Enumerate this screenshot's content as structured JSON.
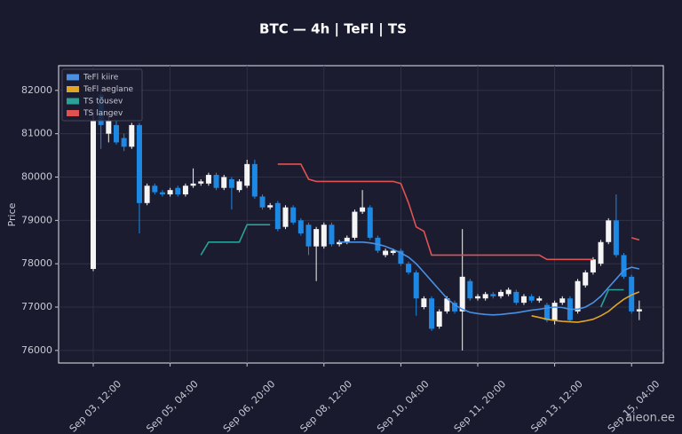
{
  "chart_data": {
    "type": "candlestick",
    "title": "BTC — 4h  |  TeFl  |  TS",
    "y_label": "Price",
    "watermark": "aieon.ee",
    "up_color": "#f5f5f5",
    "down_color": "#1e88e5",
    "grid": true,
    "legend": "upper left",
    "ylim": [
      75710,
      82570
    ],
    "yticks": [
      76000,
      77000,
      78000,
      79000,
      80000,
      81000,
      82000
    ],
    "categories": [
      "Sep 03, 12:00",
      null,
      null,
      null,
      null,
      null,
      null,
      null,
      null,
      null,
      "Sep 05, 04:00",
      null,
      null,
      null,
      null,
      null,
      null,
      null,
      null,
      null,
      "Sep 06, 20:00",
      null,
      null,
      null,
      null,
      null,
      null,
      null,
      null,
      null,
      "Sep 08, 12:00",
      null,
      null,
      null,
      null,
      null,
      null,
      null,
      null,
      null,
      "Sep 10, 04:00",
      null,
      null,
      null,
      null,
      null,
      null,
      null,
      null,
      null,
      "Sep 11, 20:00",
      null,
      null,
      null,
      null,
      null,
      null,
      null,
      null,
      null,
      "Sep 13, 12:00",
      null,
      null,
      null,
      null,
      null,
      null,
      null,
      null,
      null,
      "Sep 15, 04:00",
      null
    ],
    "open": [
      77880,
      81900,
      81000,
      81200,
      80900,
      80700,
      81200,
      79400,
      79800,
      79650,
      79600,
      79750,
      79600,
      79800,
      79850,
      79850,
      80050,
      79750,
      79950,
      79700,
      79800,
      80300,
      79550,
      79300,
      79400,
      78850,
      79300,
      79000,
      78900,
      78400,
      78400,
      78900,
      78450,
      78500,
      78600,
      79200,
      79300,
      78600,
      78200,
      78250,
      78300,
      78000,
      77800,
      77000,
      77200,
      76550,
      76900,
      77100,
      76900,
      77600,
      77200,
      77200,
      77300,
      77250,
      77300,
      77350,
      77100,
      77250,
      77150,
      77050,
      76700,
      77100,
      77200,
      76900,
      77500,
      77800,
      78000,
      78500,
      79000,
      78200,
      77700,
      76900
    ],
    "high": [
      81500,
      82000,
      81500,
      81300,
      81000,
      81250,
      81250,
      79850,
      79850,
      79700,
      79750,
      79800,
      79850,
      80200,
      79950,
      80100,
      80100,
      80050,
      80000,
      79950,
      80400,
      80400,
      79600,
      79400,
      79450,
      79350,
      79350,
      79050,
      78950,
      78850,
      78950,
      78950,
      78550,
      78650,
      79250,
      79700,
      79350,
      78650,
      78350,
      78350,
      78350,
      78050,
      77850,
      77250,
      77250,
      76950,
      77250,
      77150,
      78800,
      77650,
      77300,
      77350,
      77350,
      77400,
      77450,
      77400,
      77300,
      77300,
      77250,
      77100,
      77150,
      77250,
      77250,
      77650,
      77850,
      78150,
      78550,
      79050,
      79600,
      78250,
      77750,
      77150
    ],
    "low": [
      77830,
      80650,
      80800,
      80750,
      80600,
      80650,
      78700,
      79350,
      79600,
      79550,
      79550,
      79550,
      79550,
      79750,
      79800,
      79800,
      79700,
      79700,
      79250,
      79650,
      79750,
      79500,
      79250,
      79250,
      78750,
      78800,
      78900,
      78650,
      78200,
      77600,
      78350,
      78400,
      78400,
      78450,
      78550,
      79150,
      78550,
      78250,
      78150,
      78200,
      77950,
      77750,
      76800,
      76950,
      76450,
      76500,
      76850,
      76850,
      76000,
      77150,
      77150,
      77150,
      77200,
      77200,
      77250,
      77050,
      77050,
      77100,
      77100,
      76650,
      76600,
      77050,
      76650,
      76850,
      77450,
      77750,
      77950,
      78450,
      78150,
      77650,
      76850,
      76700
    ],
    "close": [
      81300,
      81200,
      81300,
      80800,
      80700,
      81200,
      79400,
      79800,
      79650,
      79600,
      79700,
      79600,
      79800,
      79850,
      79900,
      80050,
      79750,
      80000,
      79750,
      79900,
      80300,
      79550,
      79300,
      79350,
      78800,
      79300,
      78950,
      78700,
      78400,
      78800,
      78900,
      78450,
      78500,
      78600,
      79200,
      79300,
      78600,
      78300,
      78300,
      78300,
      78000,
      77800,
      77200,
      77200,
      76500,
      76900,
      77200,
      76900,
      77700,
      77200,
      77250,
      77300,
      77250,
      77350,
      77400,
      77100,
      77250,
      77150,
      77200,
      76700,
      77100,
      77200,
      76700,
      77600,
      77800,
      78100,
      78500,
      79000,
      78200,
      77700,
      76900,
      76950
    ],
    "series": [
      {
        "name": "TeFl kiire",
        "color": "#4a90e2",
        "values": [
          null,
          null,
          null,
          null,
          null,
          null,
          null,
          null,
          null,
          null,
          null,
          null,
          null,
          null,
          null,
          null,
          null,
          null,
          null,
          null,
          null,
          null,
          null,
          null,
          null,
          null,
          null,
          null,
          null,
          null,
          null,
          null,
          78500,
          78500,
          78500,
          78500,
          78480,
          78450,
          78400,
          78330,
          78250,
          78150,
          78000,
          77800,
          77600,
          77400,
          77200,
          77050,
          76950,
          76880,
          76850,
          76830,
          76820,
          76830,
          76850,
          76870,
          76900,
          76930,
          76950,
          76980,
          77000,
          76990,
          76950,
          76950,
          77000,
          77100,
          77250,
          77450,
          77650,
          77850,
          77920,
          77880
        ]
      },
      {
        "name": "TeFl aeglane",
        "color": "#e0a526",
        "values": [
          null,
          null,
          null,
          null,
          null,
          null,
          null,
          null,
          null,
          null,
          null,
          null,
          null,
          null,
          null,
          null,
          null,
          null,
          null,
          null,
          null,
          null,
          null,
          null,
          null,
          null,
          null,
          null,
          null,
          null,
          null,
          null,
          null,
          null,
          null,
          null,
          null,
          null,
          null,
          null,
          null,
          null,
          null,
          null,
          null,
          null,
          null,
          null,
          null,
          null,
          null,
          null,
          null,
          null,
          null,
          null,
          null,
          76800,
          76760,
          76720,
          76690,
          76670,
          76660,
          76650,
          76680,
          76720,
          76800,
          76900,
          77050,
          77180,
          77280,
          77350
        ]
      },
      {
        "name": "TS tõusev",
        "color": "#2aa198",
        "values": [
          null,
          null,
          null,
          null,
          null,
          null,
          null,
          null,
          null,
          null,
          null,
          null,
          null,
          null,
          78200,
          78500,
          78500,
          78500,
          78500,
          78500,
          78900,
          78900,
          78900,
          78900,
          null,
          null,
          null,
          null,
          null,
          null,
          null,
          null,
          null,
          null,
          null,
          null,
          null,
          null,
          null,
          null,
          null,
          null,
          null,
          null,
          null,
          null,
          null,
          null,
          null,
          null,
          null,
          null,
          null,
          null,
          null,
          null,
          null,
          null,
          null,
          null,
          null,
          null,
          null,
          null,
          null,
          null,
          77000,
          77400,
          77400,
          77400,
          null,
          null
        ]
      },
      {
        "name": "TS langev",
        "color": "#e05252",
        "values": [
          null,
          null,
          null,
          null,
          null,
          null,
          null,
          null,
          null,
          null,
          null,
          null,
          null,
          null,
          null,
          null,
          null,
          null,
          null,
          null,
          null,
          null,
          null,
          null,
          80300,
          80300,
          80300,
          80300,
          79950,
          79900,
          79900,
          79900,
          79900,
          79900,
          79900,
          79900,
          79900,
          79900,
          79900,
          79900,
          79850,
          79400,
          78850,
          78750,
          78200,
          78200,
          78200,
          78200,
          78200,
          78200,
          78200,
          78200,
          78200,
          78200,
          78200,
          78200,
          78200,
          78200,
          78200,
          78100,
          78100,
          78100,
          78100,
          78100,
          78100,
          78100,
          null,
          null,
          null,
          null,
          78600,
          78550
        ]
      }
    ]
  }
}
